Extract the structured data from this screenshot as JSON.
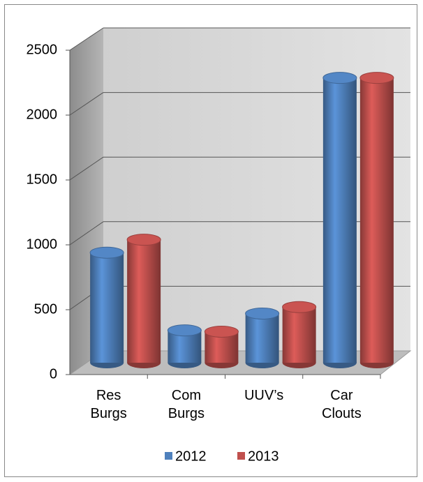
{
  "chart_data": {
    "type": "bar3d",
    "categories": [
      "Res Burgs",
      "Com Burgs",
      "UUV’s",
      "Car Clouts"
    ],
    "series": [
      {
        "name": "2012",
        "color": "#4f81bd",
        "values": [
          850,
          250,
          380,
          2200
        ]
      },
      {
        "name": "2013",
        "color": "#c0504d",
        "values": [
          950,
          240,
          430,
          2200
        ]
      }
    ],
    "ylim": [
      0,
      2500
    ],
    "yticks": [
      0,
      500,
      1000,
      1500,
      2000,
      2500
    ],
    "grid": true,
    "legend": "bottom"
  }
}
